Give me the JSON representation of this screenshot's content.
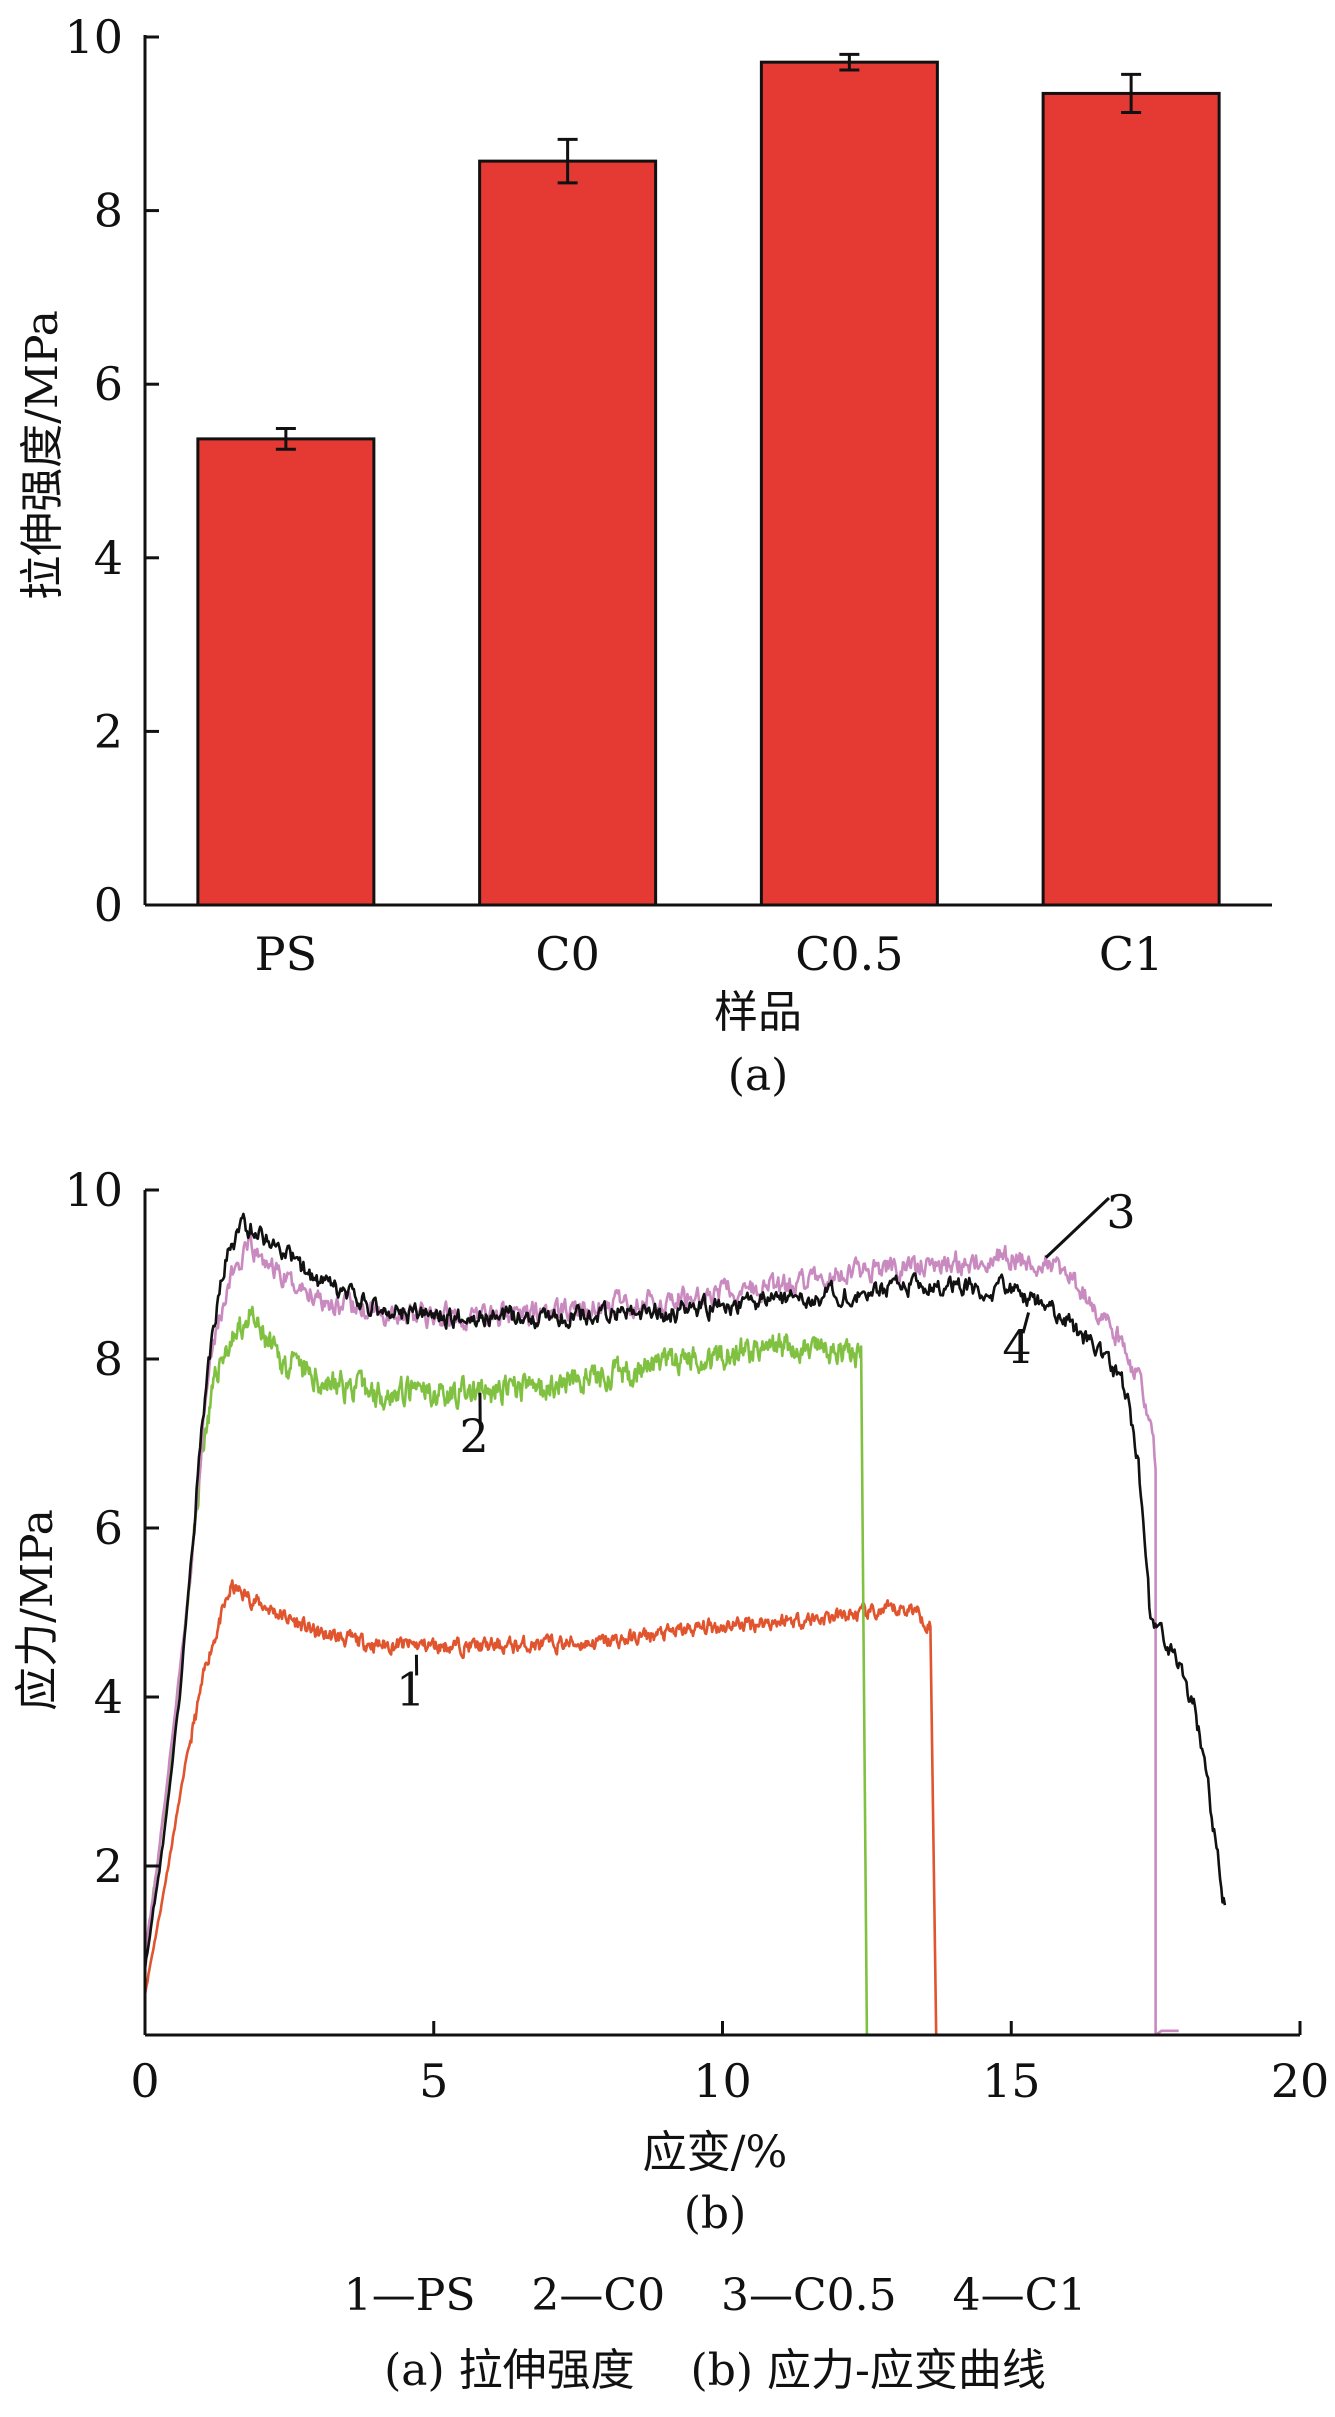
{
  "chart_data": [
    {
      "type": "bar",
      "panel_label": "(a)",
      "xlabel": "样品",
      "ylabel": "拉伸强度/MPa",
      "categories": [
        "PS",
        "C0",
        "C0.5",
        "C1"
      ],
      "values": [
        5.37,
        8.57,
        9.71,
        9.35
      ],
      "errors": [
        0.12,
        0.25,
        0.09,
        0.22
      ],
      "ylim": [
        0,
        10
      ],
      "yticks": [
        "0",
        "2",
        "4",
        "6",
        "8",
        "10"
      ],
      "bar_color": "#e53a33",
      "grid": false
    },
    {
      "type": "line",
      "panel_label": "(b)",
      "xlabel": "应变/%",
      "ylabel": "应力/MPa",
      "xlim": [
        0,
        20
      ],
      "ylim": [
        0,
        10
      ],
      "xticks": [
        "0",
        "5",
        "10",
        "15",
        "20"
      ],
      "yticks": [
        "2",
        "4",
        "6",
        "8",
        "10"
      ],
      "grid": false,
      "series": [
        {
          "name": "1",
          "color": "#e0542e",
          "noise": 0.12,
          "seed": 11,
          "points": [
            [
              0,
              0.5
            ],
            [
              0.3,
              1.6
            ],
            [
              0.7,
              3.2
            ],
            [
              1.1,
              4.5
            ],
            [
              1.5,
              5.3
            ],
            [
              2,
              5.1
            ],
            [
              3,
              4.75
            ],
            [
              4,
              4.62
            ],
            [
              6,
              4.6
            ],
            [
              8,
              4.65
            ],
            [
              10,
              4.85
            ],
            [
              12,
              4.95
            ],
            [
              13.3,
              5.05
            ],
            [
              13.6,
              4.85
            ]
          ],
          "drop_x": 13.7
        },
        {
          "name": "2",
          "color": "#80c141",
          "noise": 0.2,
          "seed": 23,
          "points": [
            [
              0,
              0.9
            ],
            [
              0.4,
              3
            ],
            [
              0.8,
              5.5
            ],
            [
              1,
              7
            ],
            [
              1.3,
              8
            ],
            [
              1.8,
              8.5
            ],
            [
              2.3,
              8
            ],
            [
              3,
              7.75
            ],
            [
              4,
              7.6
            ],
            [
              6,
              7.6
            ],
            [
              8,
              7.8
            ],
            [
              9.5,
              8
            ],
            [
              11,
              8.15
            ],
            [
              12.4,
              8.05
            ]
          ],
          "drop_x": 12.5
        },
        {
          "name": "3",
          "color": "#c98ac0",
          "noise": 0.18,
          "seed": 37,
          "points": [
            [
              0,
              0.9
            ],
            [
              0.3,
              2.5
            ],
            [
              0.8,
              5.5
            ],
            [
              1.1,
              8
            ],
            [
              1.5,
              9
            ],
            [
              1.8,
              9.3
            ],
            [
              2.5,
              8.9
            ],
            [
              3.5,
              8.6
            ],
            [
              5,
              8.5
            ],
            [
              7,
              8.55
            ],
            [
              9,
              8.7
            ],
            [
              11,
              8.85
            ],
            [
              12.5,
              9.05
            ],
            [
              14,
              9.15
            ],
            [
              15,
              9.2
            ],
            [
              15.8,
              9.15
            ],
            [
              16.3,
              8.7
            ],
            [
              16.8,
              8.3
            ],
            [
              17.2,
              7.8
            ],
            [
              17.45,
              7
            ],
            [
              17.5,
              6.7
            ]
          ],
          "drop_x": 17.5,
          "tail": [
            [
              17.6,
              0.05
            ],
            [
              17.9,
              0.05
            ]
          ]
        },
        {
          "name": "4",
          "color": "#111111",
          "noise": 0.16,
          "seed": 53,
          "points": [
            [
              0,
              0.8
            ],
            [
              0.3,
              2.2
            ],
            [
              0.6,
              4
            ],
            [
              0.9,
              6.5
            ],
            [
              1.1,
              8
            ],
            [
              1.4,
              9.2
            ],
            [
              1.7,
              9.6
            ],
            [
              2.2,
              9.4
            ],
            [
              3,
              8.9
            ],
            [
              4,
              8.6
            ],
            [
              5,
              8.5
            ],
            [
              7,
              8.5
            ],
            [
              9,
              8.55
            ],
            [
              11,
              8.7
            ],
            [
              13,
              8.85
            ],
            [
              14,
              8.9
            ],
            [
              15,
              8.8
            ],
            [
              15.7,
              8.6
            ],
            [
              16.2,
              8.3
            ],
            [
              16.7,
              8
            ],
            [
              17,
              7.6
            ],
            [
              17.2,
              6.8
            ],
            [
              17.4,
              5
            ],
            [
              17.6,
              4.8
            ],
            [
              17.8,
              4.5
            ],
            [
              18,
              4.2
            ],
            [
              18.2,
              3.8
            ],
            [
              18.5,
              2.5
            ],
            [
              18.7,
              1.5
            ]
          ]
        }
      ],
      "series_labels": [
        {
          "text": "1",
          "at": [
            4.7,
            4.5
          ],
          "label": [
            4.6,
            3.9
          ]
        },
        {
          "text": "2",
          "at": [
            5.8,
            7.6
          ],
          "label": [
            5.7,
            6.9
          ]
        },
        {
          "text": "3",
          "at": [
            15.6,
            9.2
          ],
          "label": [
            16.9,
            9.55
          ]
        },
        {
          "text": "4",
          "at": [
            15.3,
            8.55
          ],
          "label": [
            15.1,
            7.95
          ]
        }
      ]
    }
  ],
  "legend_text": "1—PS    2—C0    3—C0.5    4—C1",
  "caption_text": "(a) 拉伸强度    (b) 应力-应变曲线"
}
